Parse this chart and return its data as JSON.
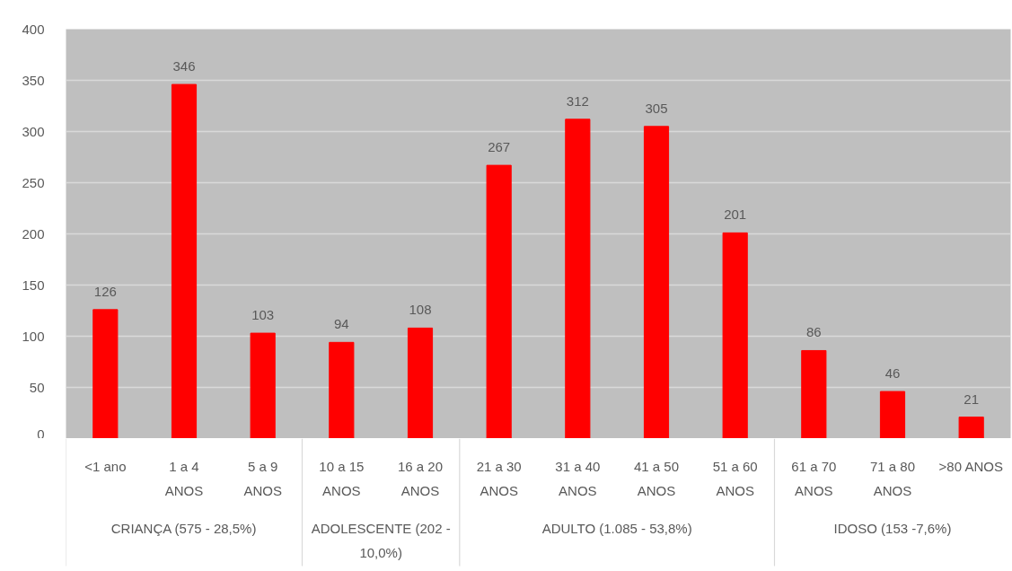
{
  "chart_data": {
    "type": "bar",
    "categories": [
      "<1 ano",
      "1 a 4 ANOS",
      "5 a 9 ANOS",
      "10 a 15 ANOS",
      "16 a 20 ANOS",
      "21 a 30 ANOS",
      "31 a 40 ANOS",
      "41 a 50 ANOS",
      "51 a 60 ANOS",
      "61 a 70 ANOS",
      "71 a 80 ANOS",
      ">80 ANOS"
    ],
    "values": [
      126,
      346,
      103,
      94,
      108,
      267,
      312,
      305,
      201,
      86,
      46,
      21
    ],
    "color": "#ff0000",
    "ylim": [
      0,
      400
    ],
    "yticks": [
      0,
      50,
      100,
      150,
      200,
      250,
      300,
      350,
      400
    ],
    "grid": "y",
    "data_labels": true,
    "annotations": [
      "CRIANÇA (575 - 28,5%)",
      "ADOLESCENTE (202 - 10,0%)",
      "ADULTO (1.085 - 53,8%)",
      "IDOSO (153 -7,6%)"
    ]
  }
}
